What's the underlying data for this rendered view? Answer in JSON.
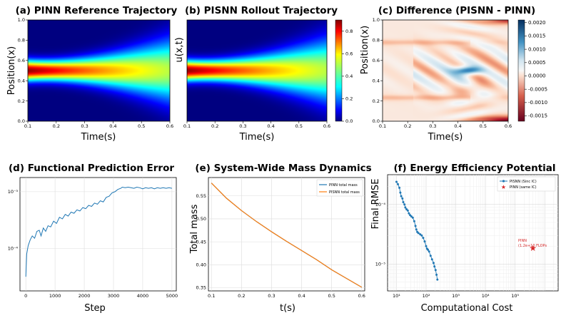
{
  "chart_data": [
    {
      "panel": "a",
      "type": "heatmap",
      "title": "(a) PINN Reference Trajectory",
      "xlabel": "Time(s)",
      "ylabel": "Position(x)",
      "xlim": [
        0.1,
        0.6
      ],
      "ylim": [
        0.0,
        1.0
      ],
      "xticks": [
        "0.1",
        "0.2",
        "0.3",
        "0.4",
        "0.5",
        "0.6"
      ],
      "yticks": [
        "0.0",
        "0.2",
        "0.4",
        "0.6",
        "0.8",
        "1.0"
      ],
      "field": {
        "peak_x": 0.5,
        "peak_value": 0.9,
        "colormap": "jet"
      }
    },
    {
      "panel": "b",
      "type": "heatmap",
      "title": "(b) PISNN Rollout Trajectory",
      "xlabel": "Time(s)",
      "ylabel": "u(x,t)",
      "xlim": [
        0.1,
        0.6
      ],
      "xticks": [
        "0.1",
        "0.2",
        "0.3",
        "0.4",
        "0.5",
        "0.6"
      ],
      "colorbar": {
        "ticks": [
          "0.0",
          "0.2",
          "0.4",
          "0.6",
          "0.8"
        ],
        "range": [
          0.0,
          0.9
        ]
      },
      "field": {
        "peak_x": 0.5,
        "peak_value": 0.9,
        "colormap": "jet"
      }
    },
    {
      "panel": "c",
      "type": "heatmap",
      "title": "(c) Difference (PISNN - PINN)",
      "xlabel": "Time(s)",
      "ylabel": "Position(x)",
      "xlim": [
        0.1,
        0.6
      ],
      "ylim": [
        0.0,
        1.0
      ],
      "xticks": [
        "0.1",
        "0.2",
        "0.3",
        "0.4",
        "0.5",
        "0.6"
      ],
      "yticks": [
        "0.0",
        "0.2",
        "0.4",
        "0.6",
        "0.8",
        "1.0"
      ],
      "colorbar": {
        "ticks": [
          "0.0020",
          "0.0015",
          "0.0010",
          "0.0005",
          "0.0000",
          "-0.0005",
          "-0.0010",
          "-0.0015"
        ],
        "range": [
          -0.0017,
          0.0021
        ]
      },
      "field": {
        "colormap": "RdBu",
        "max_positive_at": [
          0.43,
          0.5
        ],
        "max_negative_at": [
          0.6,
          0.0
        ]
      }
    },
    {
      "panel": "d",
      "type": "line",
      "title": "(d) Functional Prediction Error",
      "xlabel": "Step",
      "ylabel": "",
      "xlim": [
        -200,
        5150
      ],
      "ylim_log10": [
        -4.75,
        -2.75
      ],
      "yscale": "log",
      "xticks": [
        "0",
        "1000",
        "2000",
        "3000",
        "4000",
        "5000"
      ],
      "yticks": [
        "10⁻⁴",
        "10⁻³"
      ],
      "grid": true,
      "series": [
        {
          "color": "#1f77b4",
          "x": [
            0,
            30,
            80,
            150,
            220,
            300,
            380,
            460,
            520,
            600,
            680,
            760,
            850,
            950,
            1050,
            1150,
            1250,
            1350,
            1450,
            1550,
            1650,
            1750,
            1850,
            1950,
            2050,
            2150,
            2250,
            2350,
            2450,
            2550,
            2650,
            2750,
            2850,
            2950,
            3050,
            3150,
            3250,
            3300,
            3400,
            3500,
            3600,
            3700,
            3800,
            3900,
            4000,
            4100,
            4200,
            4300,
            4400,
            4500,
            4600,
            4700,
            4800,
            4900,
            5000
          ],
          "log10_y": [
            -4.5,
            -4.1,
            -3.95,
            -3.85,
            -3.78,
            -3.82,
            -3.7,
            -3.68,
            -3.78,
            -3.64,
            -3.7,
            -3.6,
            -3.62,
            -3.52,
            -3.56,
            -3.45,
            -3.48,
            -3.4,
            -3.43,
            -3.36,
            -3.38,
            -3.32,
            -3.34,
            -3.28,
            -3.3,
            -3.24,
            -3.26,
            -3.2,
            -3.22,
            -3.16,
            -3.18,
            -3.1,
            -3.08,
            -3.02,
            -3.0,
            -2.96,
            -2.94,
            -2.92,
            -2.93,
            -2.92,
            -2.93,
            -2.94,
            -2.92,
            -2.93,
            -2.95,
            -2.93,
            -2.94,
            -2.93,
            -2.95,
            -2.93,
            -2.94,
            -2.93,
            -2.94,
            -2.93,
            -2.94
          ]
        }
      ]
    },
    {
      "panel": "e",
      "type": "line",
      "title": "(e) System-Wide Mass Dynamics",
      "xlabel": "t(s)",
      "ylabel": "Total mass",
      "xlim": [
        0.09,
        0.61
      ],
      "ylim": [
        0.343,
        0.59
      ],
      "xticks": [
        "0.1",
        "0.2",
        "0.3",
        "0.4",
        "0.5",
        "0.6"
      ],
      "yticks": [
        "0.35",
        "0.40",
        "0.45",
        "0.50",
        "0.55"
      ],
      "grid": true,
      "legend": "top-right",
      "series": [
        {
          "name": "PINN total mass",
          "color": "#1f77b4",
          "x": [
            0.1,
            0.15,
            0.2,
            0.25,
            0.3,
            0.35,
            0.4,
            0.45,
            0.5,
            0.55,
            0.6
          ],
          "y": [
            0.578,
            0.545,
            0.518,
            0.494,
            0.472,
            0.451,
            0.431,
            0.411,
            0.389,
            0.37,
            0.351
          ]
        },
        {
          "name": "PISNN total mass",
          "color": "#ff7f0e",
          "x": [
            0.1,
            0.15,
            0.2,
            0.25,
            0.3,
            0.35,
            0.4,
            0.45,
            0.5,
            0.55,
            0.6
          ],
          "y": [
            0.578,
            0.545,
            0.518,
            0.494,
            0.472,
            0.451,
            0.431,
            0.411,
            0.389,
            0.37,
            0.351
          ]
        }
      ]
    },
    {
      "panel": "f",
      "type": "scatter",
      "title": "(f) Energy Efficiency Potential",
      "xlabel": "Computational Cost",
      "ylabel": "Final RMSE",
      "xscale": "log",
      "yscale": "log",
      "xlim_log10": [
        0.7,
        6.45
      ],
      "ylim_log10": [
        -5.45,
        -3.5
      ],
      "xticks": [
        "10¹",
        "10²",
        "10³",
        "10⁴",
        "10⁵"
      ],
      "yticks": [
        "10⁻⁴",
        "10⁻⁵"
      ],
      "grid": true,
      "legend": "top-right",
      "series": [
        {
          "name": "PISNN (Sinc IC)",
          "color": "#1f77b4",
          "log10_x": [
            1.0,
            1.05,
            1.1,
            1.13,
            1.16,
            1.2,
            1.23,
            1.27,
            1.3,
            1.34,
            1.38,
            1.42,
            1.46,
            1.5,
            1.55,
            1.6,
            1.64,
            1.67,
            1.7,
            1.74,
            1.8,
            1.85,
            1.9,
            1.95,
            2.0,
            2.03,
            2.06,
            2.1,
            2.15,
            2.2,
            2.25,
            2.28,
            2.32,
            2.35,
            2.38
          ],
          "log10_y": [
            -3.62,
            -3.66,
            -3.72,
            -3.8,
            -3.86,
            -3.9,
            -3.96,
            -4.0,
            -4.05,
            -4.08,
            -4.1,
            -4.15,
            -4.18,
            -4.2,
            -4.22,
            -4.28,
            -4.36,
            -4.42,
            -4.46,
            -4.48,
            -4.5,
            -4.52,
            -4.56,
            -4.62,
            -4.7,
            -4.74,
            -4.76,
            -4.79,
            -4.86,
            -4.92,
            -4.98,
            -5.04,
            -5.1,
            -5.18,
            -5.26
          ]
        },
        {
          "name": "PINN (same IC)",
          "color": "#d62728",
          "marker": "star",
          "log10_x": [
            5.6
          ],
          "log10_y": [
            -4.73
          ]
        }
      ],
      "annotation": {
        "lines": [
          "PINN",
          "(1.2e+10 FLOPs"
        ],
        "color": "#d62728"
      }
    }
  ]
}
